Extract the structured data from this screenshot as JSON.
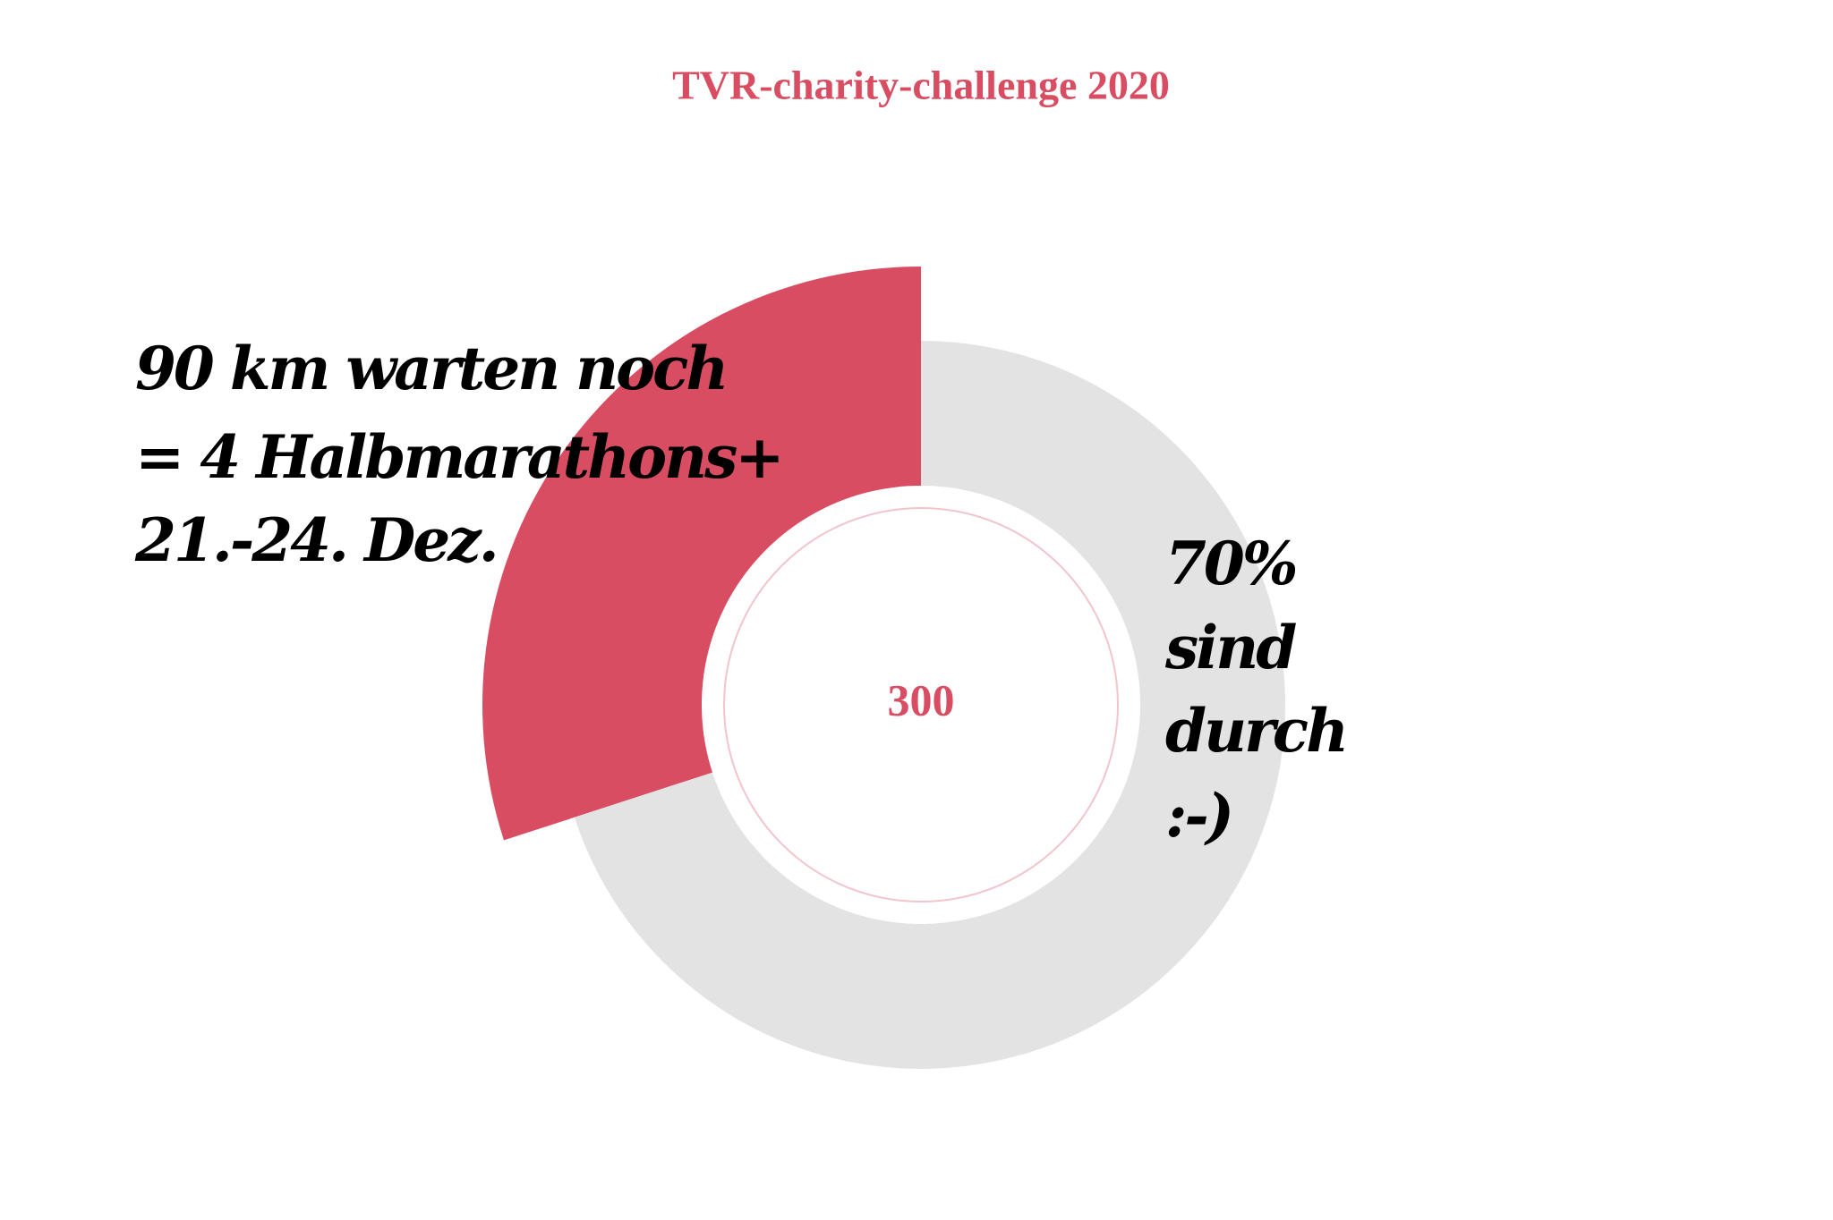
{
  "chart_data": {
    "type": "donut",
    "title": "TVR-charity-challenge 2020",
    "values": [
      30,
      70
    ],
    "colors": [
      "#d94d63",
      "#e3e3e3"
    ],
    "explode": [
      true,
      false
    ],
    "center_label": "300",
    "annotations": [
      [
        "90 km warten noch",
        "= 4 Halbmarathons+",
        "21.-24. Dez."
      ],
      [
        "70%",
        "sind",
        "durch",
        ":-)"
      ]
    ]
  }
}
